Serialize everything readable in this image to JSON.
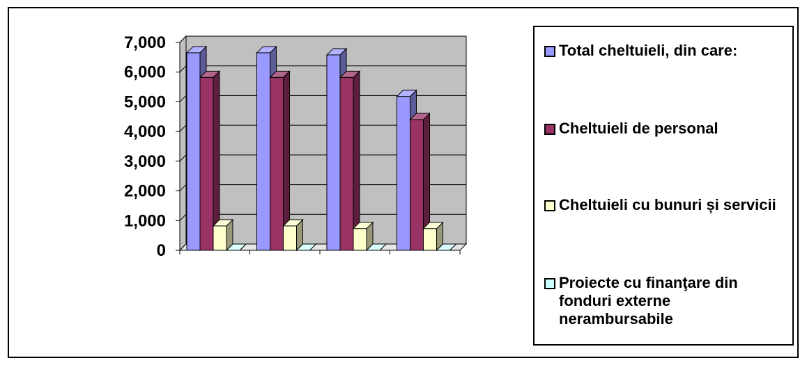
{
  "chart_data": {
    "type": "bar",
    "style": "3d-clustered-column",
    "categories": [
      "",
      "",
      "",
      ""
    ],
    "ylim": [
      0,
      7000
    ],
    "yticks": [
      "0",
      "1,000",
      "2,000",
      "3,000",
      "4,000",
      "5,000",
      "6,000",
      "7,000"
    ],
    "grid": true,
    "legend_position": "right",
    "series": [
      {
        "name": "Total cheltuieli, din care:",
        "color": "#9999FF",
        "values": [
          6650,
          6650,
          6580,
          5180
        ]
      },
      {
        "name": "Cheltuieli de personal",
        "color": "#993366",
        "values": [
          5820,
          5820,
          5820,
          4400
        ]
      },
      {
        "name": "Cheltuieli cu bunuri și servicii",
        "color": "#FFFFCC",
        "values": [
          820,
          820,
          730,
          730
        ]
      },
      {
        "name": "Proiecte cu finanţare din fonduri externe nerambursabile",
        "color": "#CCFFFF",
        "values": [
          0,
          0,
          0,
          0
        ]
      }
    ]
  },
  "colors": {
    "plot_background": "#C0C0C0",
    "gridline": "#000000"
  }
}
